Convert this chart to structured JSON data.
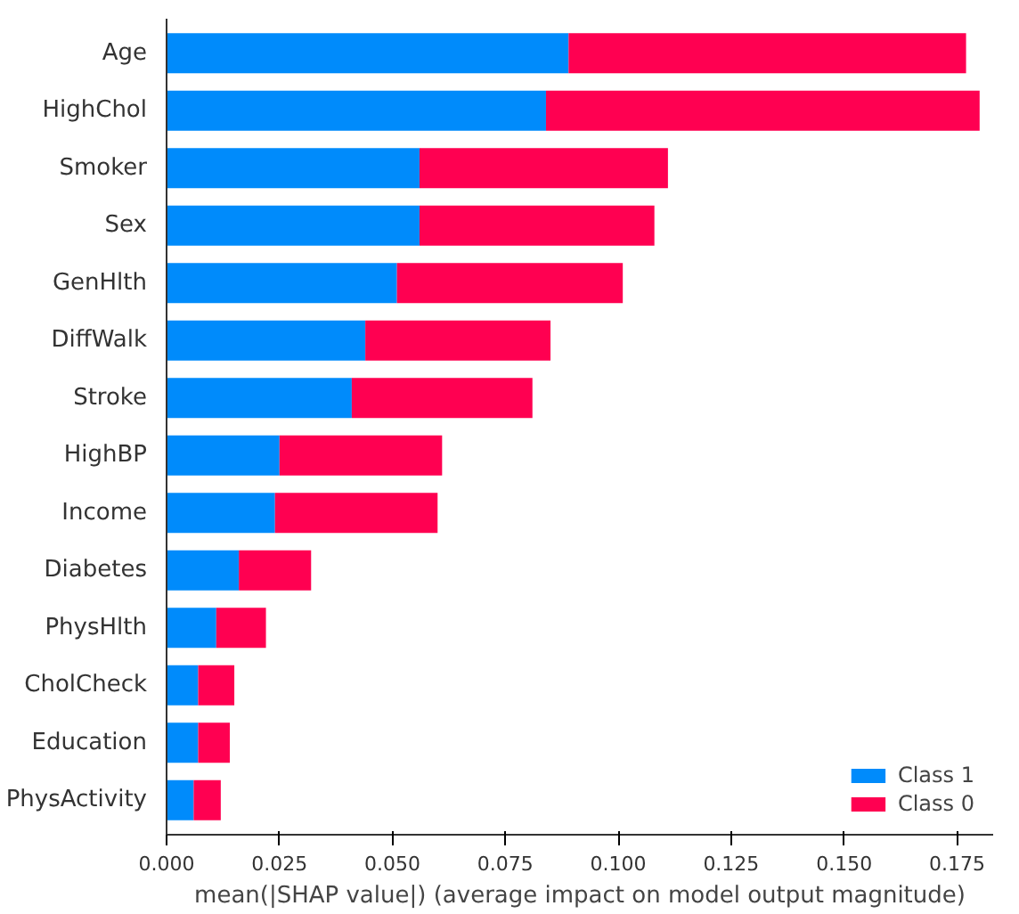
{
  "chart_data": {
    "type": "bar",
    "orientation": "horizontal",
    "stacked": true,
    "xlabel": "mean(|SHAP value|) (average impact on model output magnitude)",
    "categories": [
      "Age",
      "HighChol",
      "Smoker",
      "Sex",
      "GenHlth",
      "DiffWalk",
      "Stroke",
      "HighBP",
      "Income",
      "Diabetes",
      "PhysHlth",
      "CholCheck",
      "Education",
      "PhysActivity"
    ],
    "series": [
      {
        "name": "Class 1",
        "color": "#008bfb",
        "values": [
          0.089,
          0.084,
          0.056,
          0.056,
          0.051,
          0.044,
          0.041,
          0.025,
          0.024,
          0.016,
          0.011,
          0.007,
          0.007,
          0.006
        ]
      },
      {
        "name": "Class 0",
        "color": "#ff0051",
        "values": [
          0.088,
          0.096,
          0.055,
          0.052,
          0.05,
          0.041,
          0.04,
          0.036,
          0.036,
          0.016,
          0.011,
          0.008,
          0.007,
          0.006
        ]
      }
    ],
    "xlim": [
      0,
      0.183
    ],
    "xticks": [
      {
        "value": 0,
        "label": "0.000"
      },
      {
        "value": 0.025,
        "label": "0.025"
      },
      {
        "value": 0.05,
        "label": "0.050"
      },
      {
        "value": 0.075,
        "label": "0.075"
      },
      {
        "value": 0.1,
        "label": "0.100"
      },
      {
        "value": 0.125,
        "label": "0.125"
      },
      {
        "value": 0.15,
        "label": "0.150"
      },
      {
        "value": 0.175,
        "label": "0.175"
      }
    ],
    "grid": false,
    "legend": "bottom right"
  }
}
